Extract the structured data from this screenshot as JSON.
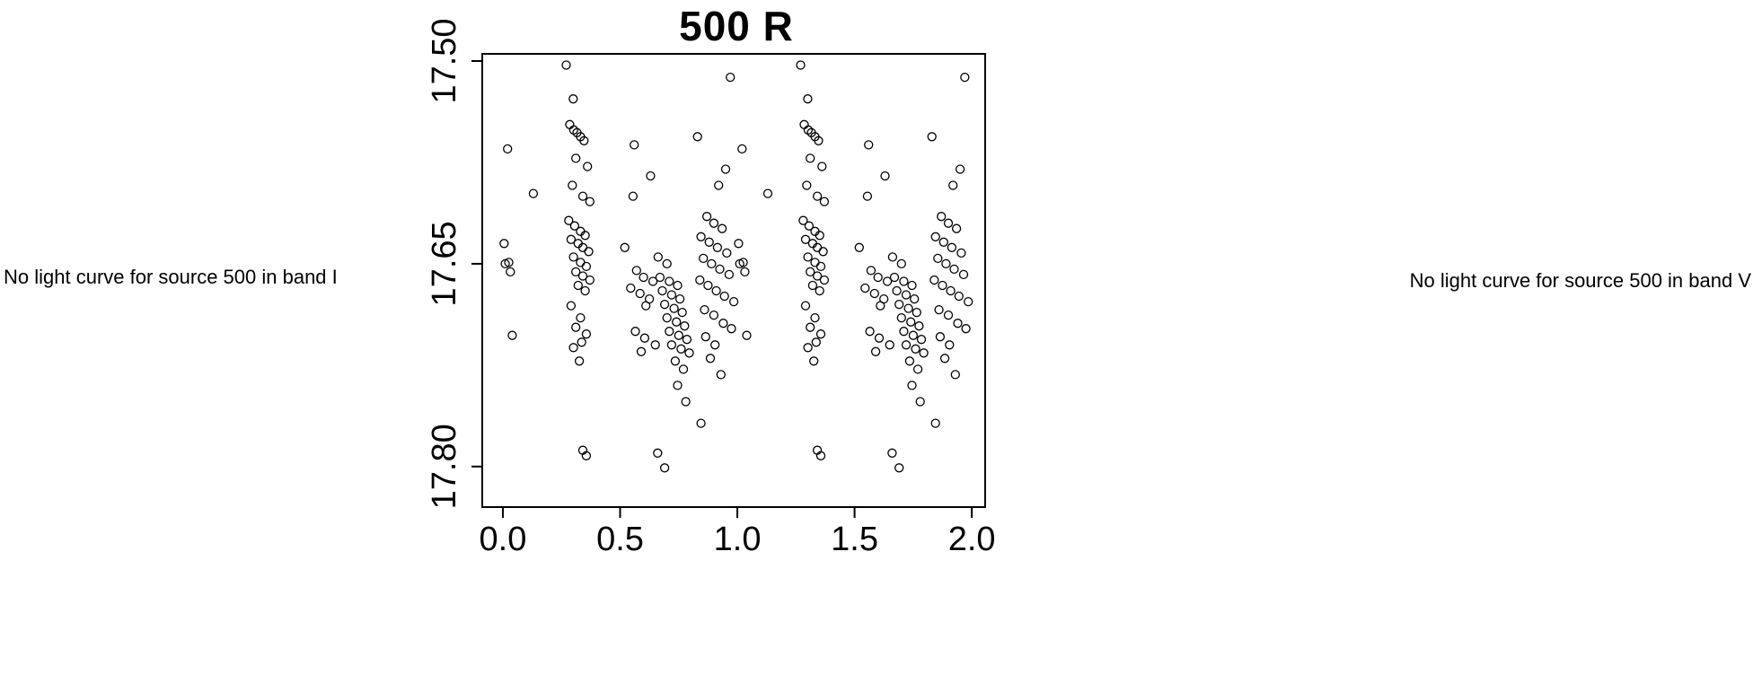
{
  "left_message": "No light curve for source 500 in band I",
  "right_message": "No light curve for source 500 in band V",
  "chart_data": {
    "type": "scatter",
    "title": "500 R",
    "xlabel": "",
    "ylabel": "",
    "legend": "none",
    "grid": false,
    "marker": "open-circle",
    "marker_color": "#000000",
    "x_ticks": [
      0.0,
      0.5,
      1.0,
      1.5,
      2.0
    ],
    "x_tick_labels": [
      "0.0",
      "0.5",
      "1.0",
      "1.5",
      "2.0"
    ],
    "y_ticks": [
      17.5,
      17.65,
      17.8
    ],
    "y_tick_labels": [
      "17.50",
      "17.65",
      "17.80"
    ],
    "xlim": [
      -0.088,
      2.057
    ],
    "ylim": [
      17.4947,
      17.83
    ],
    "y_axis_inverted": true,
    "phase_duplicated": true,
    "points_note": "phase-folded magnitudes; each point is plotted at phase and phase+1",
    "points": [
      [
        0.005,
        17.635
      ],
      [
        0.01,
        17.65
      ],
      [
        0.02,
        17.565
      ],
      [
        0.025,
        17.649
      ],
      [
        0.032,
        17.656
      ],
      [
        0.04,
        17.703
      ],
      [
        0.13,
        17.598
      ],
      [
        0.27,
        17.503
      ],
      [
        0.3,
        17.528
      ],
      [
        0.285,
        17.547
      ],
      [
        0.302,
        17.551
      ],
      [
        0.316,
        17.553
      ],
      [
        0.331,
        17.556
      ],
      [
        0.346,
        17.559
      ],
      [
        0.311,
        17.572
      ],
      [
        0.361,
        17.578
      ],
      [
        0.296,
        17.592
      ],
      [
        0.341,
        17.6
      ],
      [
        0.371,
        17.604
      ],
      [
        0.281,
        17.618
      ],
      [
        0.306,
        17.622
      ],
      [
        0.331,
        17.626
      ],
      [
        0.351,
        17.629
      ],
      [
        0.291,
        17.632
      ],
      [
        0.321,
        17.635
      ],
      [
        0.341,
        17.638
      ],
      [
        0.366,
        17.641
      ],
      [
        0.301,
        17.645
      ],
      [
        0.331,
        17.649
      ],
      [
        0.356,
        17.652
      ],
      [
        0.311,
        17.656
      ],
      [
        0.341,
        17.659
      ],
      [
        0.371,
        17.662
      ],
      [
        0.321,
        17.666
      ],
      [
        0.351,
        17.67
      ],
      [
        0.291,
        17.681
      ],
      [
        0.331,
        17.69
      ],
      [
        0.311,
        17.697
      ],
      [
        0.356,
        17.702
      ],
      [
        0.336,
        17.708
      ],
      [
        0.301,
        17.712
      ],
      [
        0.326,
        17.722
      ],
      [
        0.341,
        17.788
      ],
      [
        0.356,
        17.792
      ],
      [
        0.56,
        17.562
      ],
      [
        0.63,
        17.585
      ],
      [
        0.555,
        17.6
      ],
      [
        0.52,
        17.638
      ],
      [
        0.57,
        17.655
      ],
      [
        0.6,
        17.66
      ],
      [
        0.64,
        17.663
      ],
      [
        0.545,
        17.668
      ],
      [
        0.585,
        17.672
      ],
      [
        0.625,
        17.676
      ],
      [
        0.61,
        17.681
      ],
      [
        0.565,
        17.7
      ],
      [
        0.605,
        17.705
      ],
      [
        0.65,
        17.71
      ],
      [
        0.59,
        17.715
      ],
      [
        0.66,
        17.79
      ],
      [
        0.69,
        17.801
      ],
      [
        0.662,
        17.645
      ],
      [
        0.7,
        17.65
      ],
      [
        0.67,
        17.66
      ],
      [
        0.71,
        17.663
      ],
      [
        0.745,
        17.666
      ],
      [
        0.68,
        17.67
      ],
      [
        0.72,
        17.673
      ],
      [
        0.755,
        17.676
      ],
      [
        0.69,
        17.68
      ],
      [
        0.73,
        17.683
      ],
      [
        0.765,
        17.686
      ],
      [
        0.7,
        17.69
      ],
      [
        0.74,
        17.693
      ],
      [
        0.775,
        17.696
      ],
      [
        0.71,
        17.7
      ],
      [
        0.75,
        17.703
      ],
      [
        0.785,
        17.706
      ],
      [
        0.72,
        17.71
      ],
      [
        0.76,
        17.713
      ],
      [
        0.795,
        17.716
      ],
      [
        0.735,
        17.722
      ],
      [
        0.77,
        17.728
      ],
      [
        0.745,
        17.74
      ],
      [
        0.78,
        17.752
      ],
      [
        0.97,
        17.512
      ],
      [
        0.83,
        17.556
      ],
      [
        0.95,
        17.58
      ],
      [
        0.92,
        17.592
      ],
      [
        0.87,
        17.615
      ],
      [
        0.9,
        17.62
      ],
      [
        0.935,
        17.624
      ],
      [
        0.845,
        17.63
      ],
      [
        0.88,
        17.634
      ],
      [
        0.915,
        17.638
      ],
      [
        0.955,
        17.642
      ],
      [
        0.855,
        17.646
      ],
      [
        0.89,
        17.65
      ],
      [
        0.925,
        17.654
      ],
      [
        0.965,
        17.658
      ],
      [
        0.84,
        17.662
      ],
      [
        0.875,
        17.666
      ],
      [
        0.91,
        17.67
      ],
      [
        0.945,
        17.674
      ],
      [
        0.985,
        17.678
      ],
      [
        0.86,
        17.684
      ],
      [
        0.9,
        17.688
      ],
      [
        0.94,
        17.694
      ],
      [
        0.975,
        17.698
      ],
      [
        0.865,
        17.704
      ],
      [
        0.905,
        17.71
      ],
      [
        0.885,
        17.72
      ],
      [
        0.93,
        17.732
      ],
      [
        0.845,
        17.768
      ]
    ]
  }
}
